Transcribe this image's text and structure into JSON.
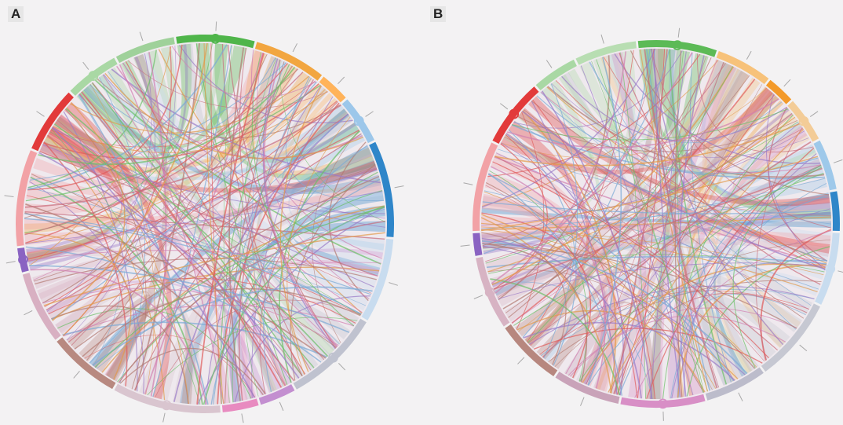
{
  "panels": [
    {
      "label": "A",
      "segments": [
        {
          "id": "s1",
          "color": "#9fd19a",
          "weight": 1.0
        },
        {
          "id": "s2",
          "color": "#4fb54a",
          "weight": 1.3
        },
        {
          "id": "s3",
          "color": "#f2a640",
          "weight": 1.2
        },
        {
          "id": "s4",
          "color": "#ffb35a",
          "weight": 0.5
        },
        {
          "id": "s5",
          "color": "#9cc7ea",
          "weight": 0.8
        },
        {
          "id": "s6",
          "color": "#2f86c9",
          "weight": 1.6
        },
        {
          "id": "s7",
          "color": "#c8dcef",
          "weight": 1.4
        },
        {
          "id": "s8",
          "color": "#bfc2cf",
          "weight": 1.6
        },
        {
          "id": "s9",
          "color": "#c38fd0",
          "weight": 0.6
        },
        {
          "id": "s10",
          "color": "#e88bc0",
          "weight": 0.6
        },
        {
          "id": "s11",
          "color": "#d9c5cf",
          "weight": 1.8
        },
        {
          "id": "s12",
          "color": "#b88980",
          "weight": 1.2
        },
        {
          "id": "s13",
          "color": "#d8b0c2",
          "weight": 1.2
        },
        {
          "id": "s14",
          "color": "#8a63c2",
          "weight": 0.4
        },
        {
          "id": "s15",
          "color": "#f2a2a6",
          "weight": 1.6
        },
        {
          "id": "s16",
          "color": "#e23a3a",
          "weight": 1.1
        },
        {
          "id": "s17",
          "color": "#a9d8a4",
          "weight": 0.9
        }
      ]
    },
    {
      "label": "B",
      "segments": [
        {
          "id": "s1",
          "color": "#b8deb2",
          "weight": 1.1
        },
        {
          "id": "s2",
          "color": "#5cba56",
          "weight": 1.4
        },
        {
          "id": "s3",
          "color": "#f7c27a",
          "weight": 1.0
        },
        {
          "id": "s4",
          "color": "#f39a2a",
          "weight": 0.5
        },
        {
          "id": "s5",
          "color": "#f3cc97",
          "weight": 0.8
        },
        {
          "id": "s6",
          "color": "#9ec9ea",
          "weight": 0.9
        },
        {
          "id": "s7",
          "color": "#2f86c9",
          "weight": 0.7
        },
        {
          "id": "s8",
          "color": "#c8dcef",
          "weight": 1.3
        },
        {
          "id": "s9",
          "color": "#c6c8d2",
          "weight": 1.5
        },
        {
          "id": "s10",
          "color": "#bcbccb",
          "weight": 1.1
        },
        {
          "id": "s11",
          "color": "#d88fc6",
          "weight": 1.5
        },
        {
          "id": "s12",
          "color": "#c9a3b9",
          "weight": 1.2
        },
        {
          "id": "s13",
          "color": "#b7877f",
          "weight": 1.2
        },
        {
          "id": "s14",
          "color": "#d7b3c3",
          "weight": 1.3
        },
        {
          "id": "s15",
          "color": "#8a63c2",
          "weight": 0.4
        },
        {
          "id": "s16",
          "color": "#f2a2a6",
          "weight": 1.6
        },
        {
          "id": "s17",
          "color": "#e23a3a",
          "weight": 1.2
        },
        {
          "id": "s18",
          "color": "#a9d8a4",
          "weight": 0.8
        }
      ]
    }
  ]
}
